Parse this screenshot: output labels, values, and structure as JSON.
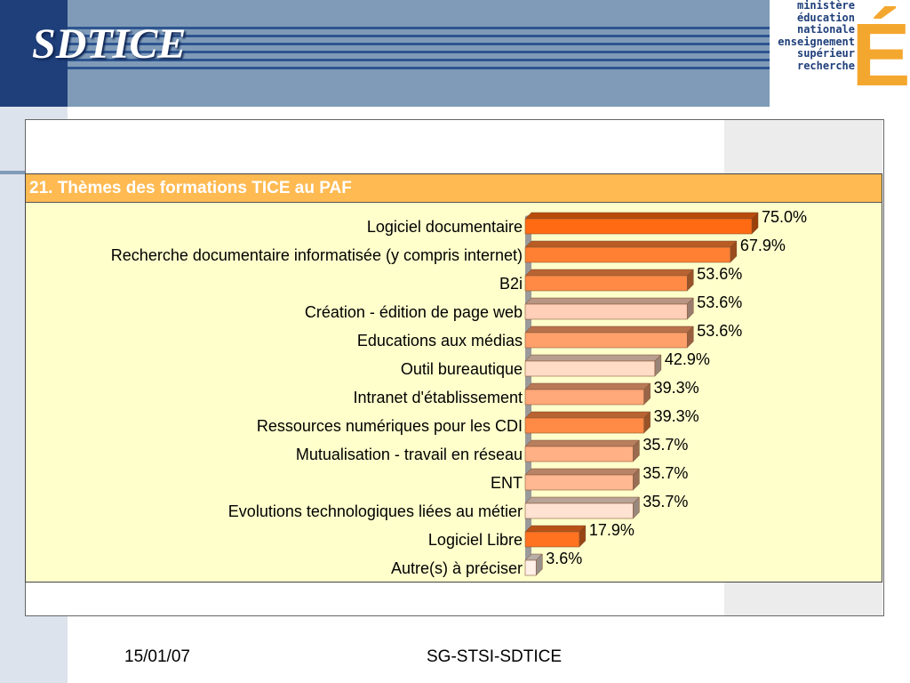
{
  "header": {
    "title": "SDTICE"
  },
  "logo": {
    "lines": [
      "ministère",
      "éducation",
      "nationale",
      "enseignement",
      "supérieur",
      "recherche"
    ],
    "mark": "É",
    "color": "#f4a72e"
  },
  "footer": {
    "date": "15/01/07",
    "center": "SG-STSI-SDTICE"
  },
  "chart_data": {
    "type": "bar",
    "orientation": "horizontal",
    "title": "21. Thèmes des formations TICE au PAF",
    "categories": [
      "Logiciel documentaire",
      "Recherche documentaire informatisée (y compris internet)",
      "B2i",
      "Création - édition de page web",
      "Educations aux médias",
      "Outil bureautique",
      "Intranet d'établissement",
      "Ressources numériques pour les CDI",
      "Mutualisation - travail en réseau",
      "ENT",
      "Evolutions technologiques liées au métier",
      "Logiciel Libre",
      "Autre(s) à préciser"
    ],
    "values": [
      75.0,
      67.9,
      53.6,
      53.6,
      53.6,
      42.9,
      39.3,
      39.3,
      35.7,
      35.7,
      35.7,
      17.9,
      3.6
    ],
    "value_labels": [
      "75.0%",
      "67.9%",
      "53.6%",
      "53.6%",
      "53.6%",
      "42.9%",
      "39.3%",
      "39.3%",
      "35.7%",
      "35.7%",
      "35.7%",
      "17.9%",
      "3.6%"
    ],
    "bar_colors": [
      "#ff6a12",
      "#ff8032",
      "#ff8a45",
      "#ffcfb8",
      "#ffa06a",
      "#ffdcc6",
      "#ffa879",
      "#ff8a45",
      "#ffb084",
      "#ffb891",
      "#ffe2d2",
      "#ff7220",
      "#fff0e8"
    ],
    "xlim": [
      0,
      100
    ],
    "grid": false,
    "legend": "none",
    "title_bg": "#ffba52",
    "panel_bg": "#ffffcc"
  }
}
